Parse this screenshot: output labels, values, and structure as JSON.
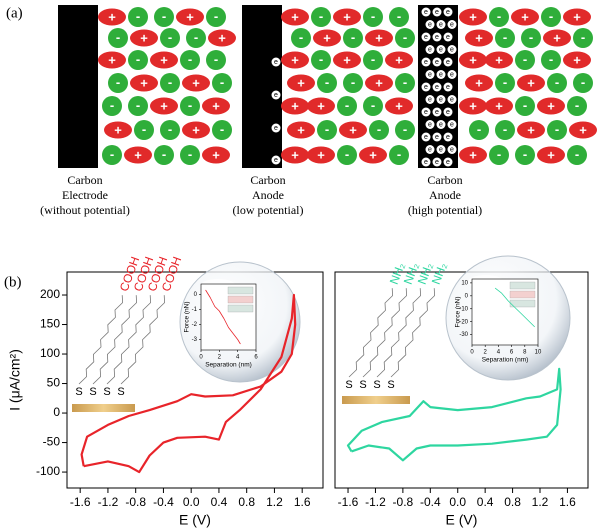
{
  "panel_a": {
    "label": "(a)",
    "electrodes": [
      {
        "lines": [
          "Carbon",
          "Electrode",
          "(without potential)"
        ]
      },
      {
        "lines": [
          "Carbon",
          "Anode",
          "(low potential)"
        ]
      },
      {
        "lines": [
          "Carbon",
          "Anode",
          "(high potential)"
        ]
      }
    ],
    "cation_sign": "+",
    "anion_sign": "-",
    "electron_sign": "e"
  },
  "panel_b_label": "(b)",
  "chart_data": [
    {
      "type": "line",
      "xlabel": "E (V)",
      "ylabel": "I (μA/cm²)",
      "xlim": [
        -1.79,
        1.9
      ],
      "ylim": [
        -127,
        239
      ],
      "xticks": [
        -1.6,
        -1.2,
        -0.8,
        -0.4,
        {
          "value": 0,
          "label": "0.0"
        },
        0.4,
        0.8,
        1.2,
        1.6
      ],
      "yticks": [
        -100,
        -50,
        0,
        50,
        100,
        150,
        200
      ],
      "x": [
        -1.55,
        -1.2,
        -0.9,
        -0.75,
        -0.6,
        -0.4,
        -0.2,
        0.2,
        0.4,
        0.5,
        0.7,
        1.0,
        1.3,
        1.45,
        1.48,
        1.5,
        1.45,
        1.3,
        1.0,
        0.6,
        0.2,
        0.0,
        -0.2,
        -0.6,
        -0.9,
        -1.2,
        -1.5,
        -1.58,
        -1.55
      ],
      "series": [
        {
          "color": "#e8242a",
          "values": [
            -90,
            -82,
            -90,
            -100,
            -72,
            -50,
            -42,
            -40,
            -45,
            -15,
            5,
            40,
            95,
            160,
            200,
            150,
            100,
            70,
            45,
            30,
            28,
            32,
            20,
            5,
            -5,
            -20,
            -40,
            -70,
            -90
          ]
        }
      ],
      "molecule": {
        "anchor": "S",
        "group": "COOH"
      },
      "inset": {
        "type": "line",
        "xlabel": "Separation (nm)",
        "ylabel": "Force (nN)",
        "xlim": [
          0,
          6
        ],
        "ylim": [
          -3.7,
          0.7
        ],
        "xticks": [
          0,
          2,
          4,
          6
        ],
        "yticks": [
          0,
          -1,
          -2,
          -3
        ],
        "x": [
          0.5,
          1,
          1.5,
          2,
          2.5,
          3,
          3.5,
          4,
          4.3
        ],
        "series": [
          {
            "color": "#e8242a",
            "values": [
              0.3,
              -0.2,
              -0.8,
              -1.1,
              -1.6,
              -2.2,
              -2.6,
              -3.0,
              -3.3
            ]
          }
        ]
      }
    },
    {
      "type": "line",
      "xlabel": "E (V)",
      "xlim": [
        -1.79,
        1.9
      ],
      "ylim": [
        -127,
        239
      ],
      "xticks": [
        -1.6,
        -1.2,
        -0.8,
        -0.4,
        {
          "value": 0,
          "label": "0.0"
        },
        0.4,
        0.8,
        1.2,
        1.6
      ],
      "x": [
        -1.55,
        -1.3,
        -1.0,
        -0.8,
        -0.6,
        -0.4,
        0.0,
        0.5,
        1.0,
        1.3,
        1.45,
        1.5,
        1.48,
        1.45,
        1.2,
        1.0,
        0.5,
        0.0,
        -0.4,
        -0.5,
        -0.7,
        -1.1,
        -1.4,
        -1.6,
        -1.55
      ],
      "series": [
        {
          "color": "#2ed6a0",
          "values": [
            -65,
            -55,
            -60,
            -80,
            -60,
            -55,
            -55,
            -52,
            -45,
            -40,
            -20,
            40,
            75,
            40,
            28,
            25,
            10,
            5,
            10,
            20,
            -5,
            -15,
            -30,
            -55,
            -65
          ]
        }
      ],
      "molecule": {
        "anchor": "S",
        "group": "NH₂"
      },
      "inset": {
        "type": "line",
        "xlabel": "Separation (nm)",
        "ylabel": "Force (nN)",
        "xlim": [
          0,
          10
        ],
        "ylim": [
          -38,
          13
        ],
        "xticks": [
          0,
          2,
          4,
          6,
          8,
          10
        ],
        "yticks": [
          10,
          0,
          -10,
          -20,
          -30
        ],
        "x": [
          3.5,
          4.5,
          5.5,
          6.5,
          7.5,
          8.5,
          9.5
        ],
        "series": [
          {
            "color": "#2ed6a0",
            "values": [
              6,
              2,
              -4,
              -9,
              -14,
              -19,
              -24
            ]
          }
        ]
      }
    }
  ]
}
